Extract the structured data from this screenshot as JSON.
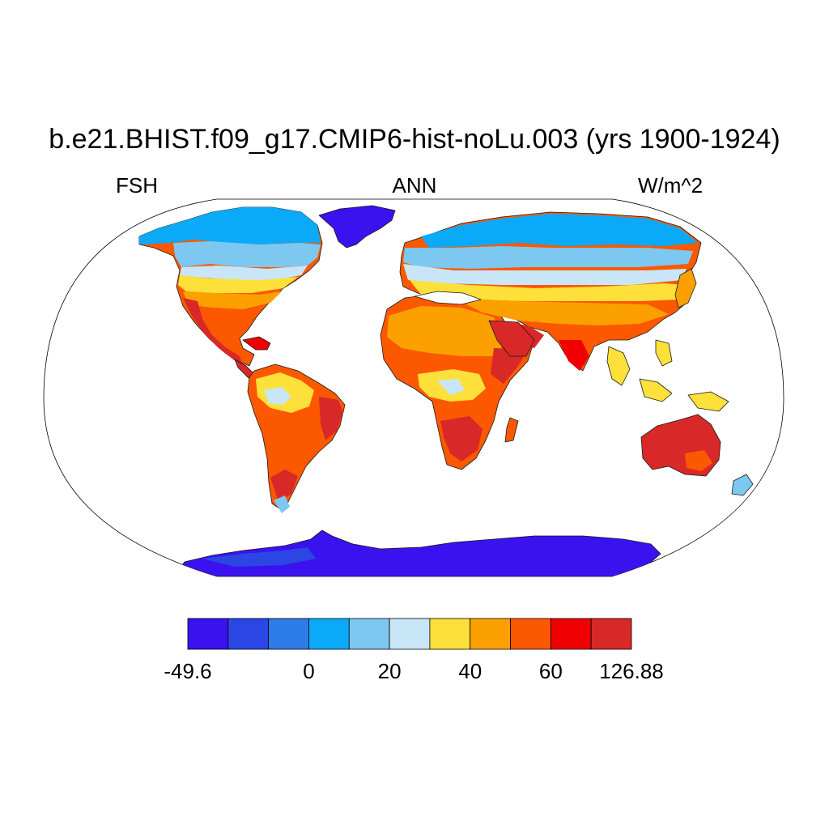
{
  "title": "b.e21.BHIST.f09_g17.CMIP6-hist-noLu.003 (yrs 1900-1924)",
  "subtitle_left": "FSH",
  "subtitle_center": "ANN",
  "subtitle_right": "W/m^2",
  "colorbar": {
    "colors": [
      "#3a12f0",
      "#2c46e6",
      "#2e7ce8",
      "#0aaaf8",
      "#7cc8f0",
      "#c8e6f8",
      "#fde03a",
      "#fca000",
      "#fc5800",
      "#f00000",
      "#d82828"
    ],
    "labels": [
      "-49.6",
      "0",
      "20",
      "40",
      "60",
      "126.88"
    ],
    "label_positions": [
      0,
      3,
      5,
      7,
      9,
      11
    ]
  },
  "projection": "Robinson"
}
